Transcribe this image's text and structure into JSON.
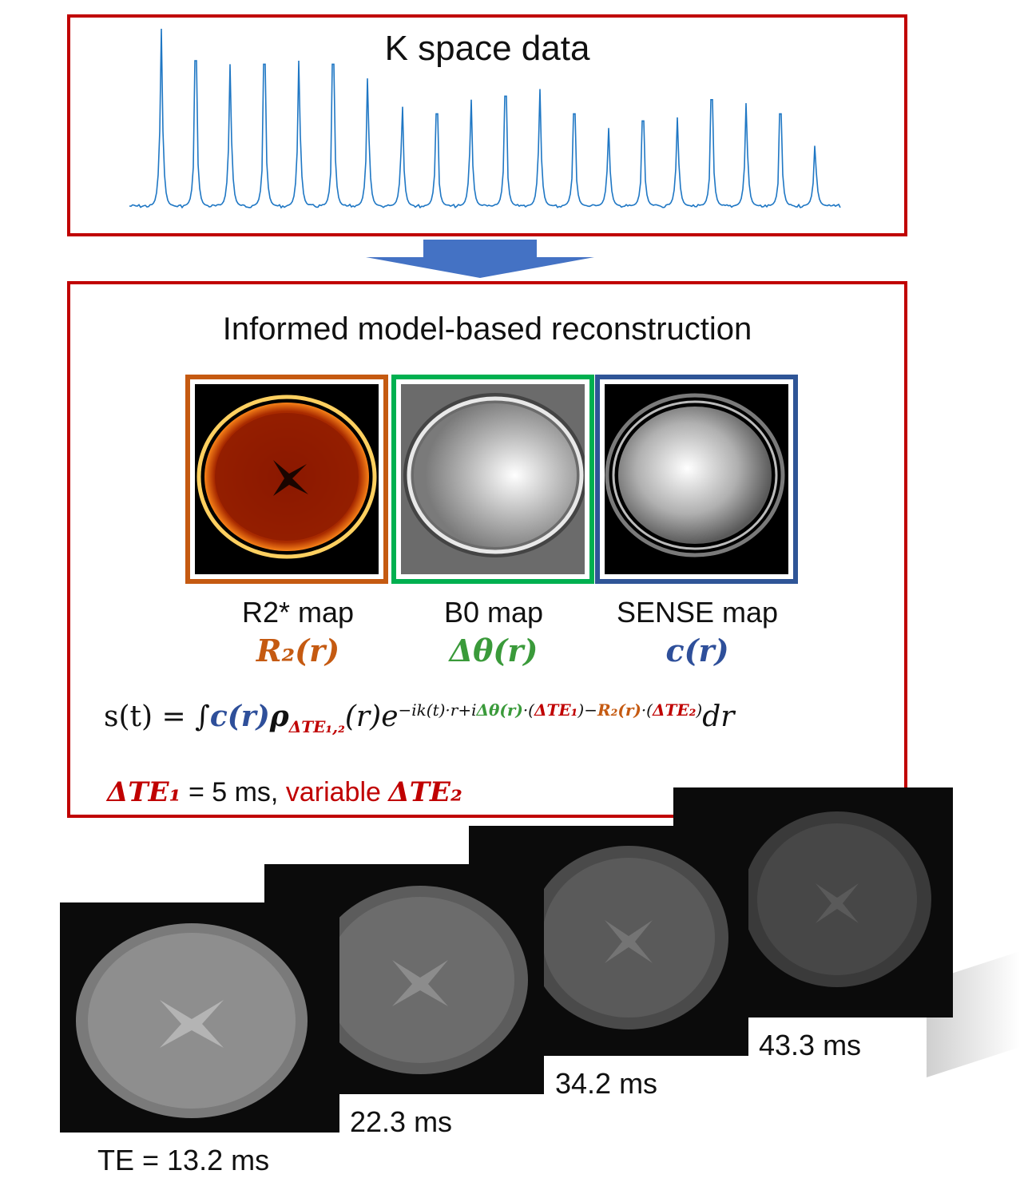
{
  "kspace": {
    "title": "K space data",
    "peaks": [
      1.0,
      0.82,
      0.8,
      0.8,
      0.82,
      0.8,
      0.72,
      0.56,
      0.52,
      0.6,
      0.62,
      0.66,
      0.52,
      0.44,
      0.48,
      0.5,
      0.6,
      0.58,
      0.52,
      0.34
    ],
    "line_color": "#1f77c4"
  },
  "recon": {
    "title": "Informed model-based reconstruction",
    "maps": [
      {
        "label": "R2* map",
        "symbol": "R₂(r)",
        "color": "#c55a11"
      },
      {
        "label": "B0 map",
        "symbol": "Δθ(r)",
        "color": "#3a9a3a"
      },
      {
        "label": "SENSE map",
        "symbol": "c(r)",
        "color": "#2e4f9a"
      }
    ],
    "equation": {
      "lhs": "s(t) = ∫",
      "c": "c(r)",
      "rho": "ρ",
      "rho_sub": "ΔTE₁,₂",
      "r": "(r)e",
      "exp_a": "−ik(t)·r+i",
      "exp_b": "Δθ(r)",
      "exp_c": "·(",
      "exp_d": "ΔTE₁",
      "exp_e": ")−",
      "exp_f": "R₂(r)",
      "exp_g": "·(",
      "exp_h": "ΔTE₂",
      "exp_i": ")",
      "tail": "dr"
    },
    "note": {
      "te1": "ΔTE₁",
      "te1_value": "= 5 ms,",
      "variable": "variable",
      "te2": "ΔTE₂"
    }
  },
  "echoes": [
    {
      "label": "TE = 13.2 ms"
    },
    {
      "label": "22.3 ms"
    },
    {
      "label": "34.2 ms"
    },
    {
      "label": "43.3 ms"
    }
  ],
  "colors": {
    "frame_red": "#c00000",
    "arrow_blue": "#4472c4",
    "r2_orange": "#c55a11",
    "b0_green": "#00b050",
    "sense_blue": "#2f5597"
  }
}
